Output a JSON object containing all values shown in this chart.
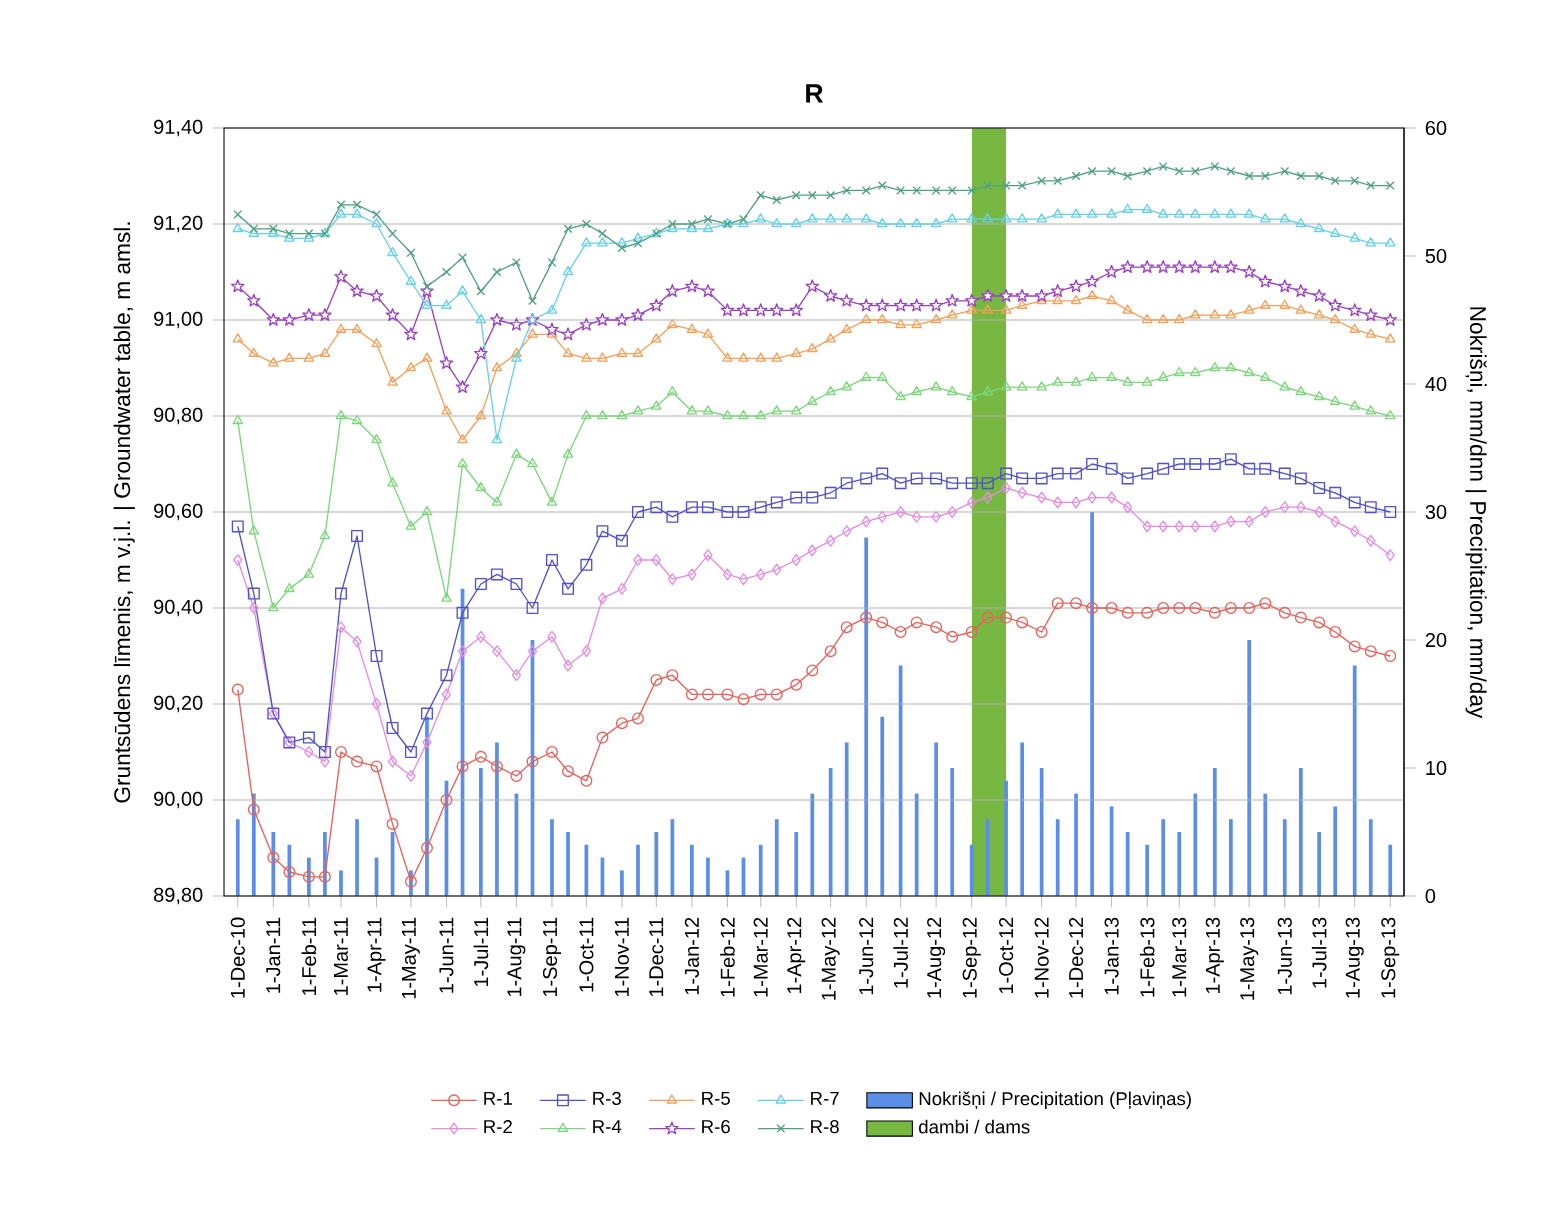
{
  "chart_data": {
    "type": "line",
    "title": "R",
    "ylabel": "Gruntsūdens līmenis, m v.j.l. | Groundwater table, m amsl.",
    "y2label": "Nokrišņi, mm/dnn | Precipitation, mm/day",
    "x": [
      "2010-12-01",
      "2010-12-15",
      "2011-01-01",
      "2011-01-15",
      "2011-02-01",
      "2011-02-15",
      "2011-03-01",
      "2011-03-15",
      "2011-04-01",
      "2011-04-15",
      "2011-05-01",
      "2011-05-15",
      "2011-06-01",
      "2011-06-15",
      "2011-07-01",
      "2011-07-15",
      "2011-08-01",
      "2011-08-15",
      "2011-09-01",
      "2011-09-15",
      "2011-10-01",
      "2011-10-15",
      "2011-11-01",
      "2011-11-15",
      "2011-12-01",
      "2011-12-15",
      "2012-01-01",
      "2012-01-15",
      "2012-02-01",
      "2012-02-15",
      "2012-03-01",
      "2012-03-15",
      "2012-04-01",
      "2012-04-15",
      "2012-05-01",
      "2012-05-15",
      "2012-06-01",
      "2012-06-15",
      "2012-07-01",
      "2012-07-15",
      "2012-08-01",
      "2012-08-15",
      "2012-09-01",
      "2012-09-15",
      "2012-10-01",
      "2012-10-15",
      "2012-11-01",
      "2012-11-15",
      "2012-12-01",
      "2012-12-15",
      "2013-01-01",
      "2013-01-15",
      "2013-02-01",
      "2013-02-15",
      "2013-03-01",
      "2013-03-15",
      "2013-04-01",
      "2013-04-15",
      "2013-05-01",
      "2013-05-15",
      "2013-06-01",
      "2013-06-15",
      "2013-07-01",
      "2013-07-15",
      "2013-08-01",
      "2013-08-15",
      "2013-09-01"
    ],
    "series": [
      {
        "name": "R-1",
        "marker": "circle",
        "color": "#e8605a",
        "values": [
          90.23,
          89.98,
          89.88,
          89.85,
          89.84,
          89.84,
          90.1,
          90.08,
          90.07,
          89.95,
          89.83,
          89.9,
          90.0,
          90.07,
          90.09,
          90.07,
          90.05,
          90.08,
          90.1,
          90.06,
          90.04,
          90.13,
          90.16,
          90.17,
          90.25,
          90.26,
          90.22,
          90.22,
          90.22,
          90.21,
          90.22,
          90.22,
          90.24,
          90.27,
          90.31,
          90.36,
          90.38,
          90.37,
          90.35,
          90.37,
          90.36,
          90.34,
          90.35,
          90.38,
          90.38,
          90.37,
          90.35,
          90.41,
          90.41,
          90.4,
          90.4,
          90.39,
          90.39,
          90.4,
          90.4,
          90.4,
          90.39,
          90.4,
          90.4,
          90.41,
          90.39,
          90.38,
          90.37,
          90.35,
          90.32,
          90.31,
          90.3
        ]
      },
      {
        "name": "R-2",
        "marker": "diamond",
        "color": "#e48ce0",
        "values": [
          90.5,
          90.4,
          90.18,
          90.12,
          90.1,
          90.08,
          90.36,
          90.33,
          90.2,
          90.08,
          90.05,
          90.12,
          90.22,
          90.31,
          90.34,
          90.31,
          90.26,
          90.31,
          90.34,
          90.28,
          90.31,
          90.42,
          90.44,
          90.5,
          90.5,
          90.46,
          90.47,
          90.51,
          90.47,
          90.46,
          90.47,
          90.48,
          90.5,
          90.52,
          90.54,
          90.56,
          90.58,
          90.59,
          90.6,
          90.59,
          90.59,
          90.6,
          90.62,
          90.63,
          90.65,
          90.64,
          90.63,
          90.62,
          90.62,
          90.63,
          90.63,
          90.61,
          90.57,
          90.57,
          90.57,
          90.57,
          90.57,
          90.58,
          90.58,
          90.6,
          90.61,
          90.61,
          90.6,
          90.58,
          90.56,
          90.54,
          90.51
        ]
      },
      {
        "name": "R-3",
        "marker": "square",
        "color": "#5050c8",
        "values": [
          90.57,
          90.43,
          90.18,
          90.12,
          90.13,
          90.1,
          90.43,
          90.55,
          90.3,
          90.15,
          90.1,
          90.18,
          90.26,
          90.39,
          90.45,
          90.47,
          90.45,
          90.4,
          90.5,
          90.44,
          90.49,
          90.56,
          90.54,
          90.6,
          90.61,
          90.59,
          90.61,
          90.61,
          90.6,
          90.6,
          90.61,
          90.62,
          90.63,
          90.63,
          90.64,
          90.66,
          90.67,
          90.68,
          90.66,
          90.67,
          90.67,
          90.66,
          90.66,
          90.66,
          90.68,
          90.67,
          90.67,
          90.68,
          90.68,
          90.7,
          90.69,
          90.67,
          90.68,
          90.69,
          90.7,
          90.7,
          90.7,
          90.71,
          90.69,
          90.69,
          90.68,
          90.67,
          90.65,
          90.64,
          90.62,
          90.61,
          90.6
        ]
      },
      {
        "name": "R-4",
        "marker": "triangle",
        "color": "#7cd67c",
        "values": [
          90.79,
          90.56,
          90.4,
          90.44,
          90.47,
          90.55,
          90.8,
          90.79,
          90.75,
          90.66,
          90.57,
          90.6,
          90.42,
          90.7,
          90.65,
          90.62,
          90.72,
          90.7,
          90.62,
          90.72,
          90.8,
          90.8,
          90.8,
          90.81,
          90.82,
          90.85,
          90.81,
          90.81,
          90.8,
          90.8,
          90.8,
          90.81,
          90.81,
          90.83,
          90.85,
          90.86,
          90.88,
          90.88,
          90.84,
          90.85,
          90.86,
          90.85,
          90.84,
          90.85,
          90.86,
          90.86,
          90.86,
          90.87,
          90.87,
          90.88,
          90.88,
          90.87,
          90.87,
          90.88,
          90.89,
          90.89,
          90.9,
          90.9,
          90.89,
          90.88,
          90.86,
          90.85,
          90.84,
          90.83,
          90.82,
          90.81,
          90.8
        ]
      },
      {
        "name": "R-5",
        "marker": "triangle",
        "color": "#f5a05a",
        "values": [
          90.96,
          90.93,
          90.91,
          90.92,
          90.92,
          90.93,
          90.98,
          90.98,
          90.95,
          90.87,
          90.9,
          90.92,
          90.81,
          90.75,
          90.8,
          90.9,
          90.93,
          90.97,
          90.97,
          90.93,
          90.92,
          90.92,
          90.93,
          90.93,
          90.96,
          90.99,
          90.98,
          90.97,
          90.92,
          90.92,
          90.92,
          90.92,
          90.93,
          90.94,
          90.96,
          90.98,
          91.0,
          91.0,
          90.99,
          90.99,
          91.0,
          91.01,
          91.02,
          91.02,
          91.02,
          91.03,
          91.04,
          91.04,
          91.04,
          91.05,
          91.04,
          91.02,
          91.0,
          91.0,
          91.0,
          91.01,
          91.01,
          91.01,
          91.02,
          91.03,
          91.03,
          91.02,
          91.01,
          91.0,
          90.98,
          90.97,
          90.96
        ]
      },
      {
        "name": "R-6",
        "marker": "star",
        "color": "#9a40c0",
        "values": [
          91.07,
          91.04,
          91.0,
          91.0,
          91.01,
          91.01,
          91.09,
          91.06,
          91.05,
          91.01,
          90.97,
          91.06,
          90.91,
          90.86,
          90.93,
          91.0,
          90.99,
          91.0,
          90.98,
          90.97,
          90.99,
          91.0,
          91.0,
          91.01,
          91.03,
          91.06,
          91.07,
          91.06,
          91.02,
          91.02,
          91.02,
          91.02,
          91.02,
          91.07,
          91.05,
          91.04,
          91.03,
          91.03,
          91.03,
          91.03,
          91.03,
          91.04,
          91.04,
          91.05,
          91.05,
          91.05,
          91.05,
          91.06,
          91.07,
          91.08,
          91.1,
          91.11,
          91.11,
          91.11,
          91.11,
          91.11,
          91.11,
          91.11,
          91.1,
          91.08,
          91.07,
          91.06,
          91.05,
          91.03,
          91.02,
          91.01,
          91.0
        ]
      },
      {
        "name": "R-7",
        "marker": "triangle",
        "color": "#66d0e8",
        "values": [
          91.19,
          91.18,
          91.18,
          91.17,
          91.17,
          91.18,
          91.22,
          91.22,
          91.2,
          91.14,
          91.08,
          91.03,
          91.03,
          91.06,
          91.0,
          90.75,
          90.92,
          91.0,
          91.02,
          91.1,
          91.16,
          91.16,
          91.16,
          91.17,
          91.18,
          91.19,
          91.19,
          91.19,
          91.2,
          91.2,
          91.21,
          91.2,
          91.2,
          91.21,
          91.21,
          91.21,
          91.21,
          91.2,
          91.2,
          91.2,
          91.2,
          91.21,
          91.21,
          91.21,
          91.21,
          91.21,
          91.21,
          91.22,
          91.22,
          91.22,
          91.22,
          91.23,
          91.23,
          91.22,
          91.22,
          91.22,
          91.22,
          91.22,
          91.22,
          91.21,
          91.21,
          91.2,
          91.19,
          91.18,
          91.17,
          91.16,
          91.16
        ]
      },
      {
        "name": "R-8",
        "marker": "cross",
        "color": "#50a080",
        "values": [
          91.22,
          91.19,
          91.19,
          91.18,
          91.18,
          91.18,
          91.24,
          91.24,
          91.22,
          91.18,
          91.14,
          91.07,
          91.1,
          91.13,
          91.06,
          91.1,
          91.12,
          91.04,
          91.12,
          91.19,
          91.2,
          91.18,
          91.15,
          91.16,
          91.18,
          91.2,
          91.2,
          91.21,
          91.2,
          91.21,
          91.26,
          91.25,
          91.26,
          91.26,
          91.26,
          91.27,
          91.27,
          91.28,
          91.27,
          91.27,
          91.27,
          91.27,
          91.27,
          91.28,
          91.28,
          91.28,
          91.29,
          91.29,
          91.3,
          91.31,
          91.31,
          91.3,
          91.31,
          91.32,
          91.31,
          91.31,
          91.32,
          91.31,
          91.3,
          91.3,
          91.31,
          91.3,
          91.3,
          91.29,
          91.29,
          91.28,
          91.28
        ]
      },
      {
        "name": "Nokrišņi / Precipitation (Pļaviņas)",
        "type": "bar",
        "axis": "y2",
        "color": "#5b8ee6",
        "values": [
          6,
          8,
          5,
          4,
          3,
          5,
          2,
          6,
          3,
          5,
          2,
          14,
          9,
          24,
          10,
          12,
          8,
          20,
          6,
          5,
          4,
          3,
          2,
          4,
          5,
          6,
          4,
          3,
          2,
          3,
          4,
          6,
          5,
          8,
          10,
          12,
          28,
          14,
          18,
          8,
          12,
          10,
          4,
          6,
          9,
          12,
          10,
          6,
          8,
          30,
          7,
          5,
          4,
          6,
          5,
          8,
          10,
          6,
          20,
          8,
          6,
          10,
          5,
          7,
          18,
          6,
          4
        ]
      }
    ],
    "bands": [
      {
        "axis": "x",
        "from": "2012-09-01",
        "to": "2012-10-01",
        "label": "dambi / dams",
        "color": "#77b843"
      }
    ],
    "xlim": [
      "2010-11-19",
      "2013-09-13"
    ],
    "xticks": [
      {
        "value": "2010-12-01",
        "label": "1-Dec-10"
      },
      {
        "value": "2011-01-01",
        "label": "1-Jan-11"
      },
      {
        "value": "2011-02-01",
        "label": "1-Feb-11"
      },
      {
        "value": "2011-03-01",
        "label": "1-Mar-11"
      },
      {
        "value": "2011-04-01",
        "label": "1-Apr-11"
      },
      {
        "value": "2011-05-01",
        "label": "1-May-11"
      },
      {
        "value": "2011-06-01",
        "label": "1-Jun-11"
      },
      {
        "value": "2011-07-01",
        "label": "1-Jul-11"
      },
      {
        "value": "2011-08-01",
        "label": "1-Aug-11"
      },
      {
        "value": "2011-09-01",
        "label": "1-Sep-11"
      },
      {
        "value": "2011-10-01",
        "label": "1-Oct-11"
      },
      {
        "value": "2011-11-01",
        "label": "1-Nov-11"
      },
      {
        "value": "2011-12-01",
        "label": "1-Dec-11"
      },
      {
        "value": "2012-01-01",
        "label": "1-Jan-12"
      },
      {
        "value": "2012-02-01",
        "label": "1-Feb-12"
      },
      {
        "value": "2012-03-01",
        "label": "1-Mar-12"
      },
      {
        "value": "2012-04-01",
        "label": "1-Apr-12"
      },
      {
        "value": "2012-05-01",
        "label": "1-May-12"
      },
      {
        "value": "2012-06-01",
        "label": "1-Jun-12"
      },
      {
        "value": "2012-07-01",
        "label": "1-Jul-12"
      },
      {
        "value": "2012-08-01",
        "label": "1-Aug-12"
      },
      {
        "value": "2012-09-01",
        "label": "1-Sep-12"
      },
      {
        "value": "2012-10-01",
        "label": "1-Oct-12"
      },
      {
        "value": "2012-11-01",
        "label": "1-Nov-12"
      },
      {
        "value": "2012-12-01",
        "label": "1-Dec-12"
      },
      {
        "value": "2013-01-01",
        "label": "1-Jan-13"
      },
      {
        "value": "2013-02-01",
        "label": "1-Feb-13"
      },
      {
        "value": "2013-03-01",
        "label": "1-Mar-13"
      },
      {
        "value": "2013-04-01",
        "label": "1-Apr-13"
      },
      {
        "value": "2013-05-01",
        "label": "1-May-13"
      },
      {
        "value": "2013-06-01",
        "label": "1-Jun-13"
      },
      {
        "value": "2013-07-01",
        "label": "1-Jul-13"
      },
      {
        "value": "2013-08-01",
        "label": "1-Aug-13"
      },
      {
        "value": "2013-09-01",
        "label": "1-Sep-13"
      }
    ],
    "ylim": [
      89.8,
      91.4
    ],
    "yticks": [
      {
        "value": 89.8,
        "label": "89,80"
      },
      {
        "value": 90.0,
        "label": "90,00"
      },
      {
        "value": 90.2,
        "label": "90,20"
      },
      {
        "value": 90.4,
        "label": "90,40"
      },
      {
        "value": 90.6,
        "label": "90,60"
      },
      {
        "value": 90.8,
        "label": "90,80"
      },
      {
        "value": 91.0,
        "label": "91,00"
      },
      {
        "value": 91.2,
        "label": "91,20"
      },
      {
        "value": 91.4,
        "label": "91,40"
      }
    ],
    "y2lim": [
      0,
      60
    ],
    "y2ticks": [
      0,
      10,
      20,
      30,
      40,
      50,
      60
    ],
    "grid": "y",
    "legend": "bottom"
  }
}
